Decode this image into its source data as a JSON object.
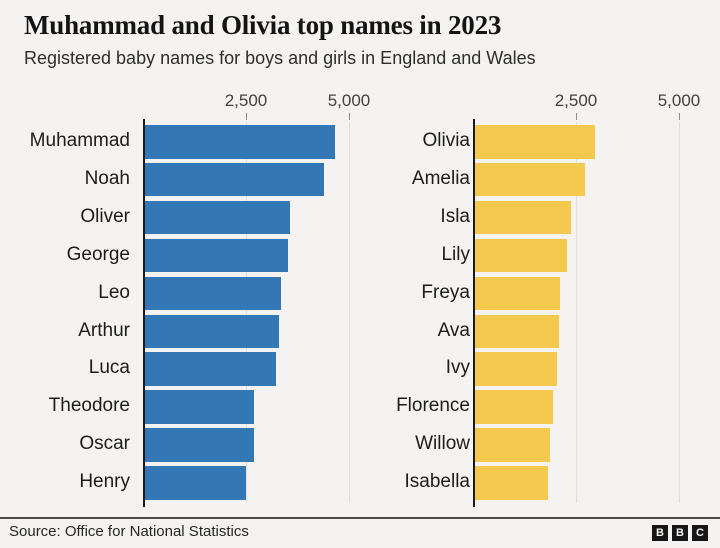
{
  "header": {
    "title": "Muhammad and Olivia top names in 2023",
    "subtitle": "Registered baby names for boys and girls in England and Wales"
  },
  "axis": {
    "tick_labels": [
      "2,500",
      "5,000"
    ],
    "ticks": [
      2500,
      5000
    ],
    "xlim": [
      0,
      5000
    ]
  },
  "chart_data": {
    "type": "bar",
    "orientation": "horizontal",
    "title": "Muhammad and Olivia top names in 2023",
    "subtitle": "Registered baby names for boys and girls in England and Wales",
    "xlim": [
      0,
      5000
    ],
    "ticks": [
      2500,
      5000
    ],
    "grid": "vertical-behind-bars",
    "panels": [
      {
        "name": "boys",
        "color": "#3377b5",
        "categories": [
          "Muhammad",
          "Noah",
          "Oliver",
          "George",
          "Leo",
          "Arthur",
          "Luca",
          "Theodore",
          "Oscar",
          "Henry"
        ],
        "values": [
          4661,
          4382,
          3556,
          3494,
          3331,
          3290,
          3200,
          2680,
          2660,
          2480
        ]
      },
      {
        "name": "girls",
        "color": "#f5c84e",
        "categories": [
          "Olivia",
          "Amelia",
          "Isla",
          "Lily",
          "Freya",
          "Ava",
          "Ivy",
          "Florence",
          "Willow",
          "Isabella"
        ],
        "values": [
          2940,
          2690,
          2350,
          2260,
          2090,
          2060,
          2010,
          1910,
          1840,
          1800
        ]
      }
    ]
  },
  "footer": {
    "source": "Source: Office for National Statistics",
    "logo": [
      "B",
      "B",
      "C"
    ]
  }
}
